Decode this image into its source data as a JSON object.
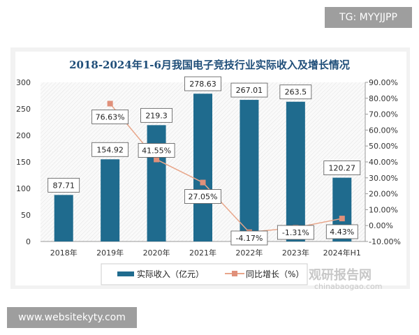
{
  "watermarks": {
    "top": "TG: MYYJJPP",
    "bottom": "www.websitekyty.com",
    "logo": "观研报告网",
    "logo_url": "chinabaogao.com"
  },
  "chart_data": {
    "type": "bar",
    "title": "2018-2024年1-6月我国电子竞技行业实际收入及增长情况",
    "categories": [
      "2018年",
      "2019年",
      "2020年",
      "2021年",
      "2022年",
      "2023年",
      "2024年H1"
    ],
    "series": [
      {
        "name": "实际收入（亿元）",
        "type": "bar",
        "axis": "left",
        "color": "#1f6b8e",
        "values": [
          87.71,
          154.92,
          219.3,
          278.63,
          267.01,
          263.5,
          120.27
        ],
        "labels": [
          "87.71",
          "154.92",
          "219.3",
          "278.63",
          "267.01",
          "263.5",
          "120.27"
        ]
      },
      {
        "name": "同比增长（%）",
        "type": "line",
        "axis": "right",
        "color": "#e8a68a",
        "values": [
          null,
          76.63,
          41.55,
          27.05,
          -4.17,
          -1.31,
          4.43
        ],
        "labels": [
          "",
          "76.63%",
          "41.55%",
          "27.05%",
          "-4.17%",
          "-1.31%",
          "4.43%"
        ]
      }
    ],
    "y_left": {
      "range": [
        0,
        300
      ],
      "ticks": [
        "0",
        "50",
        "100",
        "150",
        "200",
        "250",
        "300"
      ]
    },
    "y_right": {
      "range": [
        -10,
        90
      ],
      "ticks": [
        "-10.00%",
        "0.00%",
        "10.00%",
        "20.00%",
        "30.00%",
        "40.00%",
        "50.00%",
        "60.00%",
        "70.00%",
        "80.00%",
        "90.00%"
      ]
    },
    "legend": "bottom",
    "grid": false
  }
}
